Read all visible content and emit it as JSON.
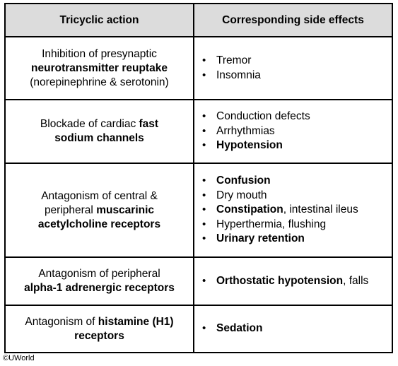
{
  "table": {
    "headers": [
      "Tricyclic action",
      "Corresponding side effects"
    ],
    "rows": [
      {
        "action": [
          {
            "t": "Inhibition of presynaptic",
            "b": false,
            "br": true
          },
          {
            "t": "neurotransmitter reuptake",
            "b": true,
            "br": true
          },
          {
            "t": "(norepinephrine & serotonin)",
            "b": false
          }
        ],
        "effects": [
          [
            {
              "t": "Tremor",
              "b": false
            }
          ],
          [
            {
              "t": "Insomnia",
              "b": false
            }
          ]
        ]
      },
      {
        "action": [
          {
            "t": "Blockade of cardiac ",
            "b": false
          },
          {
            "t": "fast",
            "b": true,
            "br": true
          },
          {
            "t": "sodium channels",
            "b": true
          }
        ],
        "effects": [
          [
            {
              "t": "Conduction defects",
              "b": false
            }
          ],
          [
            {
              "t": "Arrhythmias",
              "b": false
            }
          ],
          [
            {
              "t": "Hypotension",
              "b": true
            }
          ]
        ]
      },
      {
        "action": [
          {
            "t": "Antagonism of central &",
            "b": false,
            "br": true
          },
          {
            "t": "peripheral ",
            "b": false
          },
          {
            "t": "muscarinic",
            "b": true,
            "br": true
          },
          {
            "t": "acetylcholine receptors",
            "b": true
          }
        ],
        "effects": [
          [
            {
              "t": "Confusion",
              "b": true
            }
          ],
          [
            {
              "t": "Dry mouth",
              "b": false
            }
          ],
          [
            {
              "t": "Constipation",
              "b": true
            },
            {
              "t": ", intestinal ileus",
              "b": false
            }
          ],
          [
            {
              "t": "Hyperthermia, flushing",
              "b": false
            }
          ],
          [
            {
              "t": "Urinary retention",
              "b": true
            }
          ]
        ]
      },
      {
        "action": [
          {
            "t": "Antagonism of peripheral",
            "b": false,
            "br": true
          },
          {
            "t": "alpha-1 adrenergic receptors",
            "b": true
          }
        ],
        "effects": [
          [
            {
              "t": "Orthostatic hypotension",
              "b": true
            },
            {
              "t": ", falls",
              "b": false
            }
          ]
        ]
      },
      {
        "action": [
          {
            "t": "Antagonism of ",
            "b": false
          },
          {
            "t": "histamine (H1)",
            "b": true,
            "br": true
          },
          {
            "t": "receptors",
            "b": true
          }
        ],
        "effects": [
          [
            {
              "t": "Sedation",
              "b": true
            }
          ]
        ]
      }
    ]
  },
  "copyright": "©UWorld"
}
